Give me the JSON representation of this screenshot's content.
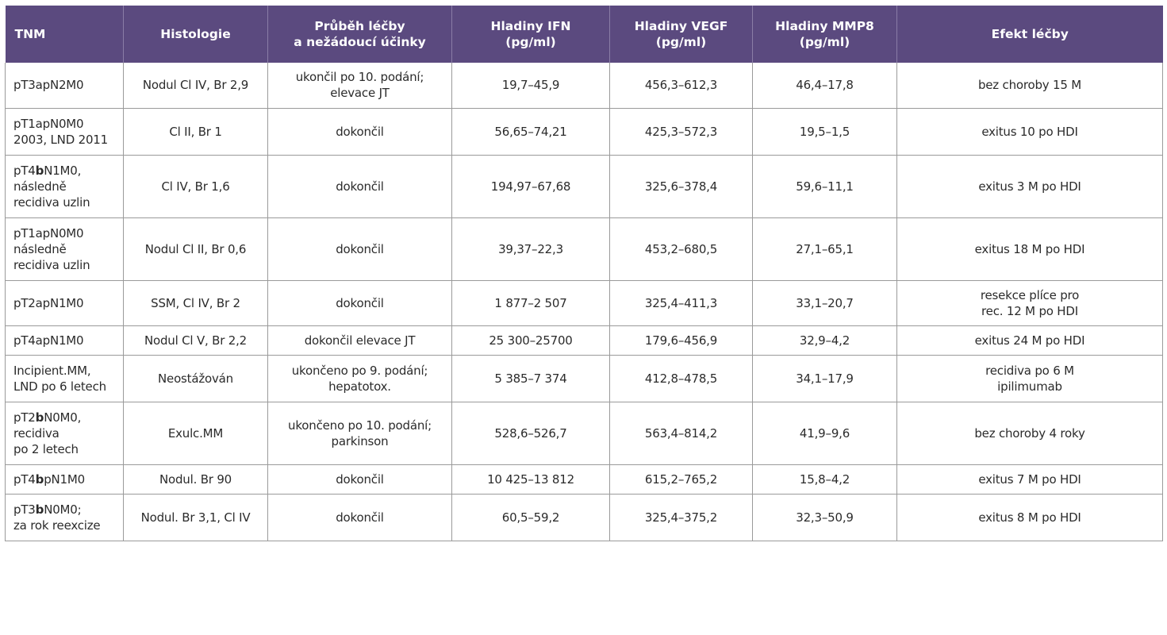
{
  "table": {
    "headers": {
      "tnm": "TNM",
      "histologie": "Histologie",
      "prubeh_l1": "Průběh léčby",
      "prubeh_l2": "a nežádoucí účinky",
      "ifn_l1": "Hladiny IFN",
      "ifn_l2": "(pg/ml)",
      "vegf_l1": "Hladiny VEGF",
      "vegf_l2": "(pg/ml)",
      "mmp8_l1": "Hladiny MMP8",
      "mmp8_l2": "(pg/ml)",
      "efekt": "Efekt léčby"
    },
    "rows": [
      {
        "tnm1": "pT3apN2M0",
        "histologie": "Nodul Cl IV, Br 2,9",
        "prubeh1": "ukončil po 10. podání;",
        "prubeh2": "elevace JT",
        "ifn": "19,7–45,9",
        "vegf": "456,3–612,3",
        "mmp8": "46,4–17,8",
        "efekt1": "bez choroby 15 M"
      },
      {
        "tnm1": "pT1apN0M0",
        "tnm2": "2003, LND 2011",
        "histologie": "Cl II, Br 1",
        "prubeh1": "dokončil",
        "ifn": "56,65–74,21",
        "vegf": "425,3–572,3",
        "mmp8": "19,5–1,5",
        "efekt1": "exitus 10 po HDI"
      },
      {
        "tnm1_pre": "pT4",
        "tnm1_bold": "b",
        "tnm1_post": "N1M0,",
        "tnm2": "následně",
        "tnm3": "recidiva uzlin",
        "histologie": "Cl IV, Br 1,6",
        "prubeh1": "dokončil",
        "ifn": "194,97–67,68",
        "vegf": "325,6–378,4",
        "mmp8": "59,6–11,1",
        "efekt1": "exitus 3 M po HDI"
      },
      {
        "tnm1": "pT1apN0M0",
        "tnm2": "následně",
        "tnm3": "recidiva uzlin",
        "histologie": "Nodul Cl II, Br 0,6",
        "prubeh1": "dokončil",
        "ifn": "39,37–22,3",
        "vegf": "453,2–680,5",
        "mmp8": "27,1–65,1",
        "efekt1": "exitus 18 M po HDI"
      },
      {
        "tnm1": "pT2apN1M0",
        "histologie": "SSM, Cl IV, Br 2",
        "prubeh1": "dokončil",
        "ifn": "1 877–2 507",
        "vegf": "325,4–411,3",
        "mmp8": "33,1–20,7",
        "efekt1": "resekce plíce pro",
        "efekt2": "rec. 12 M po HDI"
      },
      {
        "tnm1": "pT4apN1M0",
        "histologie": "Nodul Cl V, Br 2,2",
        "prubeh1": "dokončil elevace JT",
        "ifn": "25 300–25700",
        "vegf": "179,6–456,9",
        "mmp8": "32,9–4,2",
        "efekt1": "exitus 24 M po HDI"
      },
      {
        "tnm1": "Incipient.MM,",
        "tnm2": "LND po 6 letech",
        "histologie": "Neostážován",
        "prubeh1": "ukončeno po 9. podání;",
        "prubeh2": "hepatotox.",
        "ifn": "5 385–7 374",
        "vegf": "412,8–478,5",
        "mmp8": "34,1–17,9",
        "efekt1": "recidiva po 6 M",
        "efekt2": "ipilimumab"
      },
      {
        "tnm1_pre": "pT2",
        "tnm1_bold": "b",
        "tnm1_post": "N0M0,",
        "tnm2": "recidiva",
        "tnm3": "po 2 letech",
        "histologie": "Exulc.MM",
        "prubeh1": "ukončeno po 10. podání;",
        "prubeh2": "parkinson",
        "ifn": "528,6–526,7",
        "vegf": "563,4–814,2",
        "mmp8": "41,9–9,6",
        "efekt1": "bez choroby 4 roky"
      },
      {
        "tnm1_pre": "pT4",
        "tnm1_bold": "b",
        "tnm1_post": "pN1M0",
        "histologie": "Nodul. Br 90",
        "prubeh1": "dokončil",
        "ifn": "10 425–13 812",
        "vegf": "615,2–765,2",
        "mmp8": "15,8–4,2",
        "efekt1": "exitus 7 M po HDI"
      },
      {
        "tnm1_pre": "pT3",
        "tnm1_bold": "b",
        "tnm1_post": "N0M0;",
        "tnm2": "za rok reexcize",
        "histologie": "Nodul. Br 3,1, Cl IV",
        "prubeh1": "dokončil",
        "ifn": "60,5–59,2",
        "vegf": "325,4–375,2",
        "mmp8": "32,3–50,9",
        "efekt1": "exitus 8 M po HDI"
      }
    ]
  }
}
